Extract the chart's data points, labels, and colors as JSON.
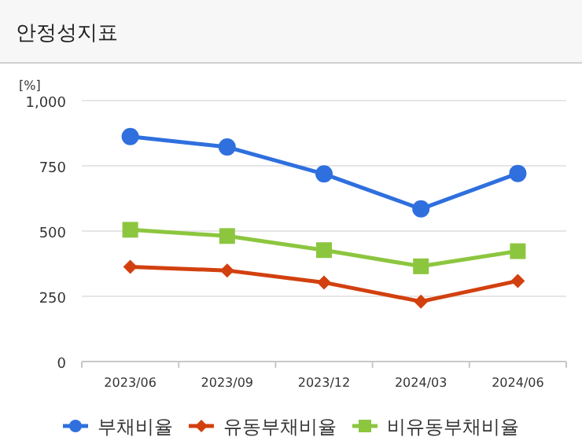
{
  "chart_data": {
    "type": "line",
    "title": "안정성지표",
    "ylabel": "[%]",
    "categories": [
      "2023/06",
      "2023/09",
      "2023/12",
      "2024/03",
      "2024/06"
    ],
    "series": [
      {
        "name": "부채비율",
        "color": "#2f6fde",
        "marker": "circle",
        "values": [
          862,
          822,
          719,
          585,
          721
        ]
      },
      {
        "name": "유동부채비율",
        "color": "#d2400f",
        "marker": "diamond",
        "values": [
          363,
          349,
          303,
          230,
          309
        ]
      },
      {
        "name": "비유동부채비율",
        "color": "#8cc63f",
        "marker": "square",
        "values": [
          505,
          481,
          427,
          365,
          423
        ]
      }
    ],
    "ylim": [
      0,
      1000
    ],
    "yticks": [
      0,
      250,
      500,
      750,
      {
        "value": 1000,
        "label": "1,000"
      }
    ],
    "grid": "y",
    "legend": "bottom",
    "line_style": "solid"
  }
}
